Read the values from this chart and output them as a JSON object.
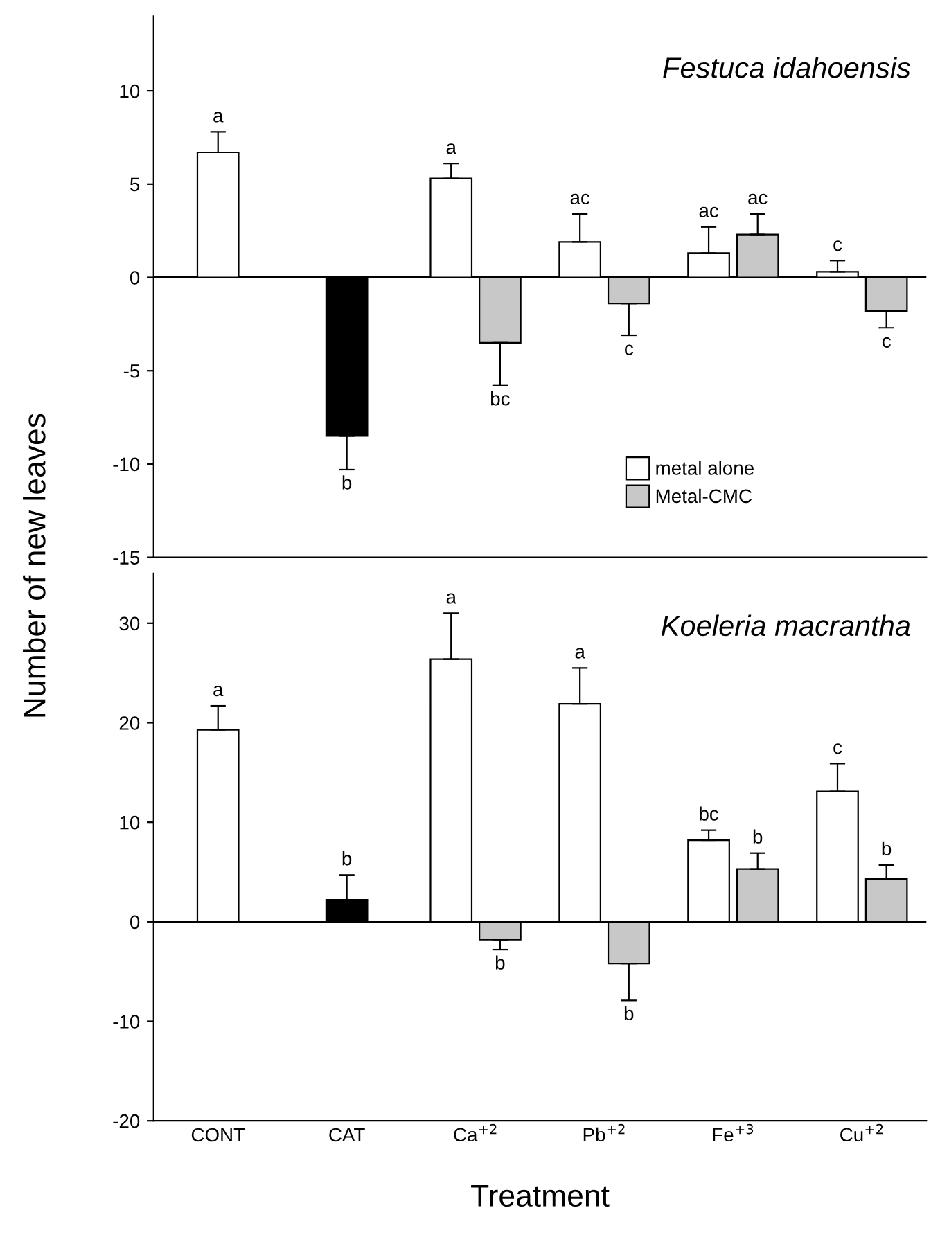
{
  "chart_data": [
    {
      "type": "bar",
      "title": "Festuca idahoensis",
      "ylabel": "Number of new leaves",
      "categories": [
        null,
        null,
        null,
        null,
        null,
        null
      ],
      "ylim": [
        -15,
        14
      ],
      "yticks": [
        -15,
        -10,
        -5,
        0,
        5,
        10
      ],
      "tick_labels": "y",
      "legend": "bottom right",
      "grid": false,
      "ref_lines": [
        {
          "axis": "y",
          "value": 0,
          "color": "#000000"
        }
      ],
      "series": [
        {
          "color": "#ffffff",
          "values": [
            6.7,
            null,
            null,
            null,
            null,
            null
          ],
          "errors": [
            1.1,
            null,
            null,
            null,
            null,
            null
          ],
          "value_labels": [
            "a",
            null,
            null,
            null,
            null,
            null
          ]
        },
        {
          "color": "#000000",
          "values": [
            null,
            -8.5,
            null,
            null,
            null,
            null
          ],
          "errors": [
            null,
            1.8,
            null,
            null,
            null,
            null
          ],
          "value_labels": [
            null,
            "b",
            null,
            null,
            null,
            null
          ]
        },
        {
          "name": "metal alone",
          "color": "#ffffff",
          "values": [
            null,
            null,
            5.3,
            1.9,
            1.3,
            0.3
          ],
          "errors": [
            null,
            null,
            0.8,
            1.5,
            1.4,
            0.6
          ],
          "value_labels": [
            null,
            null,
            "a",
            "ac",
            "ac",
            "c"
          ]
        },
        {
          "name": "Metal-CMC",
          "color": "#c8c8c8",
          "values": [
            null,
            null,
            -3.5,
            -1.4,
            2.3,
            -1.8
          ],
          "errors": [
            null,
            null,
            2.3,
            1.7,
            1.1,
            0.9
          ],
          "value_labels": [
            null,
            null,
            "bc",
            "c",
            "ac",
            "c"
          ]
        }
      ]
    },
    {
      "type": "bar",
      "title": "Koeleria macrantha",
      "xlabel": "Treatment",
      "categories": [
        "CONT",
        "CAT",
        "Ca$^{+2}$",
        "Pb$^{+2}$",
        "Fe$^{+3}$",
        "Cu$^{+2}$"
      ],
      "ylim": [
        -20,
        35
      ],
      "yticks": [
        -20,
        -10,
        0,
        10,
        20,
        30
      ],
      "grid": false,
      "ref_lines": [
        {
          "axis": "y",
          "value": 0,
          "color": "#000000"
        }
      ],
      "series": [
        {
          "color": "#ffffff",
          "values": [
            19.3,
            null,
            null,
            null,
            null,
            null
          ],
          "errors": [
            2.4,
            null,
            null,
            null,
            null,
            null
          ],
          "value_labels": [
            "a",
            null,
            null,
            null,
            null,
            null
          ]
        },
        {
          "color": "#000000",
          "values": [
            null,
            2.2,
            null,
            null,
            null,
            null
          ],
          "errors": [
            null,
            2.5,
            null,
            null,
            null,
            null
          ],
          "value_labels": [
            null,
            "b",
            null,
            null,
            null,
            null
          ]
        },
        {
          "color": "#ffffff",
          "values": [
            null,
            null,
            26.4,
            21.9,
            8.2,
            13.1
          ],
          "errors": [
            null,
            null,
            4.6,
            3.6,
            1.0,
            2.8
          ],
          "value_labels": [
            null,
            null,
            "a",
            "a",
            "bc",
            "c"
          ]
        },
        {
          "color": "#c8c8c8",
          "values": [
            null,
            null,
            -1.8,
            -4.2,
            5.3,
            4.3
          ],
          "errors": [
            null,
            null,
            1.0,
            3.7,
            1.6,
            1.4
          ],
          "value_labels": [
            null,
            null,
            "b",
            "b",
            "b",
            "b"
          ]
        }
      ]
    }
  ]
}
